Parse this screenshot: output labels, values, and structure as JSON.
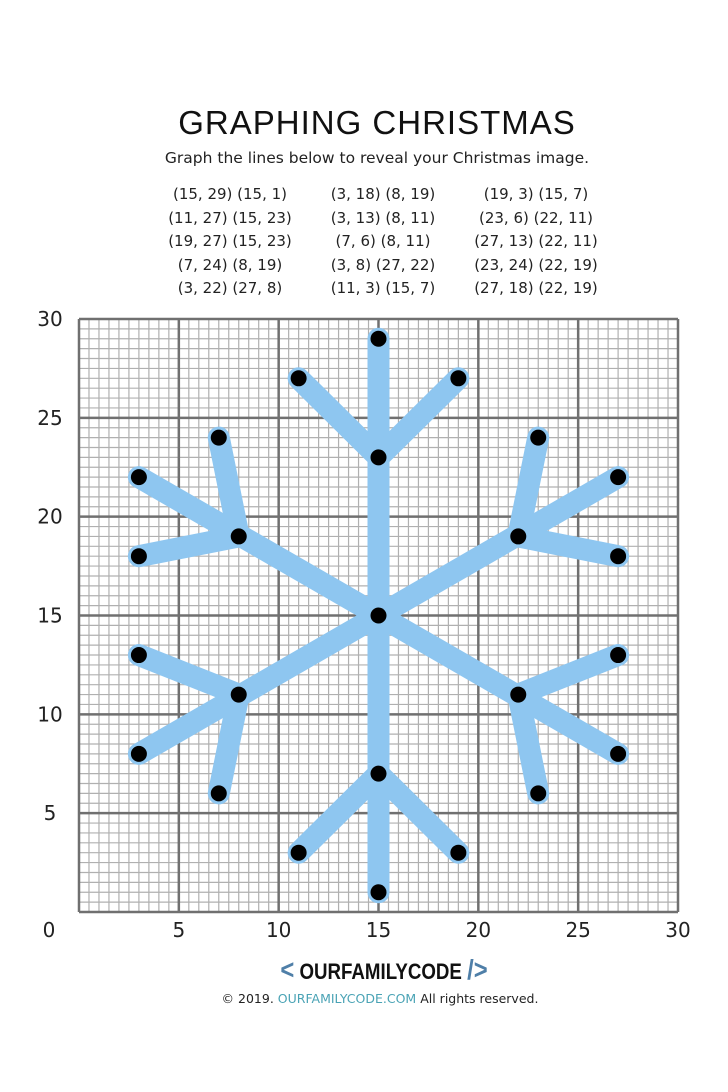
{
  "title": "GRAPHING CHRISTMAS",
  "subtitle": "Graph the lines below to reveal your Christmas image.",
  "instructions": [
    [
      "(15, 29) (15, 1)",
      "(11, 27) (15, 23)",
      "(19, 27) (15, 23)",
      "(7, 24) (8, 19)",
      "(3, 22) (27, 8)"
    ],
    [
      "(3, 18) (8, 19)",
      "(3, 13) (8, 11)",
      "(7, 6) (8, 11)",
      "(3, 8) (27, 22)",
      "(11, 3) (15, 7)"
    ],
    [
      "(19, 3) (15, 7)",
      "(23, 6) (22, 11)",
      "(27, 13) (22, 11)",
      "(23, 24) (22, 19)",
      "(27, 18) (22, 19)"
    ]
  ],
  "chart_data": {
    "type": "line",
    "xlim": [
      0,
      30
    ],
    "ylim": [
      0,
      30
    ],
    "x_ticks": [
      "0",
      "5",
      "10",
      "15",
      "20",
      "25",
      "30"
    ],
    "y_ticks": [
      "5",
      "10",
      "15",
      "20",
      "25",
      "30"
    ],
    "grid": true,
    "minor_grid_step": 0.5,
    "major_grid_step": 5,
    "line_color": "#8ec6f0",
    "point_color": "#000000",
    "segments": [
      [
        [
          15,
          29
        ],
        [
          15,
          1
        ]
      ],
      [
        [
          11,
          27
        ],
        [
          15,
          23
        ]
      ],
      [
        [
          19,
          27
        ],
        [
          15,
          23
        ]
      ],
      [
        [
          7,
          24
        ],
        [
          8,
          19
        ]
      ],
      [
        [
          3,
          22
        ],
        [
          27,
          8
        ]
      ],
      [
        [
          3,
          18
        ],
        [
          8,
          19
        ]
      ],
      [
        [
          3,
          13
        ],
        [
          8,
          11
        ]
      ],
      [
        [
          7,
          6
        ],
        [
          8,
          11
        ]
      ],
      [
        [
          3,
          8
        ],
        [
          27,
          22
        ]
      ],
      [
        [
          11,
          3
        ],
        [
          15,
          7
        ]
      ],
      [
        [
          19,
          3
        ],
        [
          15,
          7
        ]
      ],
      [
        [
          23,
          6
        ],
        [
          22,
          11
        ]
      ],
      [
        [
          27,
          13
        ],
        [
          22,
          11
        ]
      ],
      [
        [
          23,
          24
        ],
        [
          22,
          19
        ]
      ],
      [
        [
          27,
          18
        ],
        [
          22,
          19
        ]
      ]
    ],
    "points": [
      [
        15,
        29
      ],
      [
        15,
        1
      ],
      [
        11,
        27
      ],
      [
        15,
        23
      ],
      [
        19,
        27
      ],
      [
        7,
        24
      ],
      [
        8,
        19
      ],
      [
        3,
        22
      ],
      [
        27,
        8
      ],
      [
        3,
        18
      ],
      [
        3,
        13
      ],
      [
        8,
        11
      ],
      [
        7,
        6
      ],
      [
        3,
        8
      ],
      [
        27,
        22
      ],
      [
        11,
        3
      ],
      [
        15,
        7
      ],
      [
        19,
        3
      ],
      [
        23,
        6
      ],
      [
        22,
        11
      ],
      [
        27,
        13
      ],
      [
        23,
        24
      ],
      [
        22,
        19
      ],
      [
        27,
        18
      ],
      [
        15,
        15
      ]
    ]
  },
  "footer": {
    "logo_left": "<",
    "logo_text": "OURFAMILYCODE",
    "logo_right": "/>",
    "copyright": "© 2019.",
    "url": "OURFAMILYCODE.COM",
    "rights": "All rights reserved."
  }
}
